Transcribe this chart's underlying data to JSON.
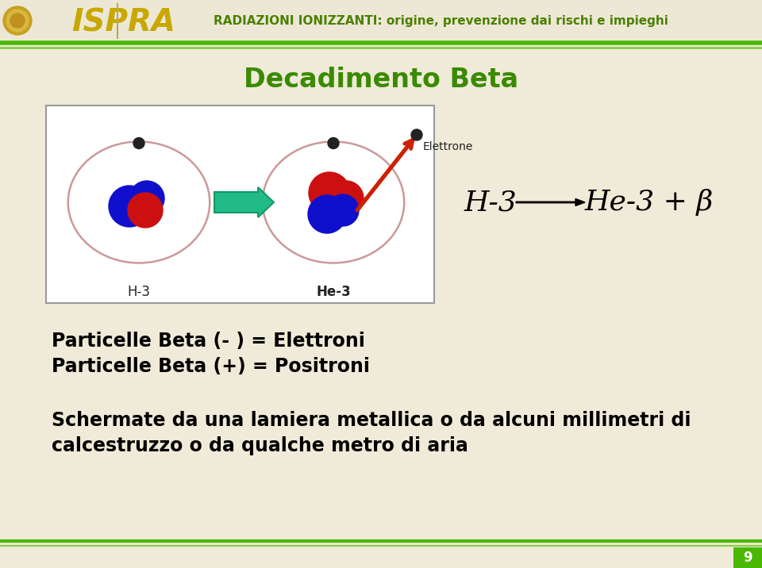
{
  "bg_color": "#f0ead8",
  "header_bg": "#ede8d5",
  "header_text": "RADIAZIONI IONIZZANTI: origine, prevenzione dai rischi e impieghi",
  "header_text_color": "#4a8000",
  "ispra_text": "ISPRA",
  "ispra_color": "#c8a800",
  "title": "Decadimento Beta",
  "title_color": "#3a8a00",
  "line1": "Particelle Beta (- ) = Elettroni",
  "line2": "Particelle Beta (+) = Positroni",
  "line3": "Schermate da una lamiera metallica o da alcuni millimetri di",
  "line4": "calcestruzzo o da qualche metro di aria",
  "page_number": "9",
  "footer_line_color": "#4ab800",
  "green_line_color": "#4ab800",
  "text_color": "#000000",
  "blue_color": "#1010cc",
  "red_color": "#cc1010",
  "green_arrow_color": "#22bb88"
}
